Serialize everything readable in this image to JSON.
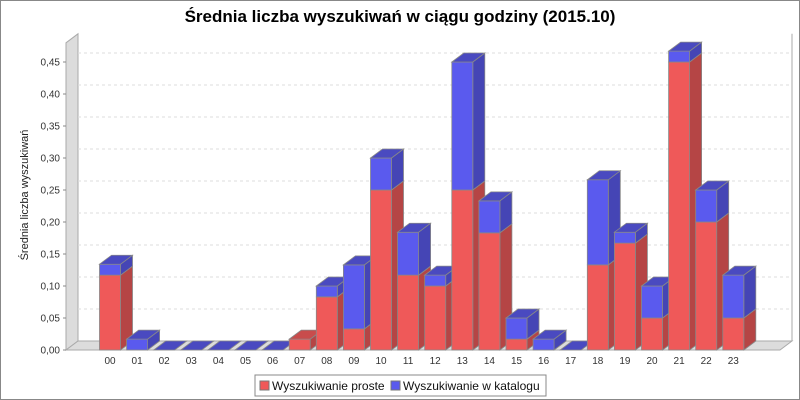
{
  "chart_data": {
    "type": "bar",
    "stacked": true,
    "three_d": true,
    "title": "Średnia liczba wyszukiwań w ciągu godziny (2015.10)",
    "xlabel": "",
    "ylabel": "Średnia liczba wyszukiwań",
    "ylim": [
      0,
      0.48
    ],
    "yticks": [
      "0,00",
      "0,05",
      "0,10",
      "0,15",
      "0,20",
      "0,25",
      "0,30",
      "0,35",
      "0,40",
      "0,45"
    ],
    "grid": true,
    "legend_position": "bottom",
    "categories": [
      "00",
      "01",
      "02",
      "03",
      "04",
      "05",
      "06",
      "07",
      "08",
      "09",
      "10",
      "11",
      "12",
      "13",
      "14",
      "15",
      "16",
      "17",
      "18",
      "19",
      "20",
      "21",
      "22",
      "23"
    ],
    "series": [
      {
        "name": "Wyszukiwanie proste",
        "color": "#ef5959",
        "values": [
          0.117,
          0,
          0,
          0,
          0,
          0,
          0,
          0.017,
          0.083,
          0.033,
          0.25,
          0.117,
          0.1,
          0.25,
          0.183,
          0.017,
          0,
          0,
          0.133,
          0.167,
          0.05,
          0.45,
          0.2,
          0.05
        ]
      },
      {
        "name": "Wyszukiwanie w katalogu",
        "color": "#5a5aee",
        "values": [
          0.017,
          0.017,
          0,
          0,
          0,
          0,
          0,
          0,
          0.017,
          0.1,
          0.05,
          0.067,
          0.017,
          0.2,
          0.05,
          0.033,
          0.017,
          0,
          0.133,
          0.017,
          0.05,
          0.017,
          0.05,
          0.067
        ]
      }
    ]
  }
}
